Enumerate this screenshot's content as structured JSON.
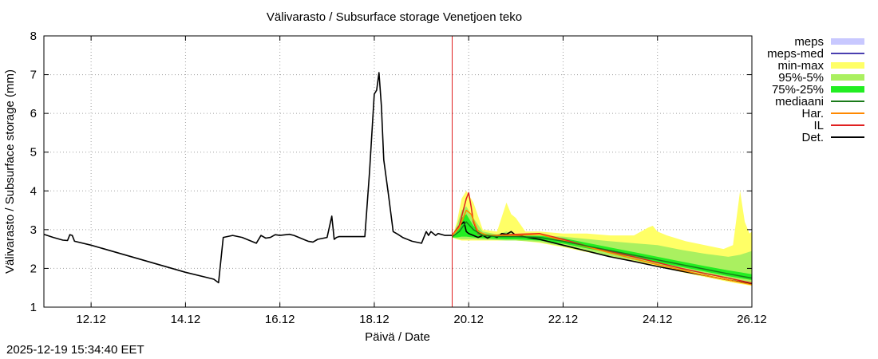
{
  "footer": {
    "timestamp": "2025-12-19 15:34:40 EET"
  },
  "chart_data": {
    "type": "line",
    "title": "Välivarasto / Subsurface storage  Venetjoen teko",
    "xlabel": "Päivä / Date",
    "ylabel": "Välivarasto / Subsurface storage (mm)",
    "x_unit": "days since 11.12 00:00",
    "xlim": [
      0,
      15.0
    ],
    "ylim": [
      1,
      8
    ],
    "yticks": [
      1,
      2,
      3,
      4,
      5,
      6,
      7,
      8
    ],
    "xticks": [
      {
        "x": 1,
        "label": "12.12"
      },
      {
        "x": 3,
        "label": "14.12"
      },
      {
        "x": 5,
        "label": "16.12"
      },
      {
        "x": 7,
        "label": "18.12"
      },
      {
        "x": 9,
        "label": "20.12"
      },
      {
        "x": 11,
        "label": "22.12"
      },
      {
        "x": 13,
        "label": "24.12"
      },
      {
        "x": 15,
        "label": "26.12"
      }
    ],
    "grid": true,
    "forecast_start_x": 8.65,
    "legend_position": "outside-right",
    "legend": [
      {
        "label": "meps",
        "color": "#c8c8ff",
        "kind": "band"
      },
      {
        "label": "meps-med",
        "color": "#4a3fb0",
        "kind": "line"
      },
      {
        "label": "min-max",
        "color": "#ffff66",
        "kind": "band"
      },
      {
        "label": "95%-5%",
        "color": "#aaf060",
        "kind": "band"
      },
      {
        "label": "75%-25%",
        "color": "#22ee22",
        "kind": "band"
      },
      {
        "label": "mediaani",
        "color": "#1a7a1a",
        "kind": "line"
      },
      {
        "label": "Har.",
        "color": "#ff8800",
        "kind": "line"
      },
      {
        "label": "IL",
        "color": "#e02020",
        "kind": "line"
      },
      {
        "label": "Det.",
        "color": "#000000",
        "kind": "line"
      }
    ],
    "series": [
      {
        "name": "min-max",
        "kind": "band",
        "color": "#ffff66",
        "x": [
          8.65,
          8.75,
          8.85,
          8.95,
          9.1,
          9.3,
          9.6,
          9.8,
          9.9,
          10.0,
          10.2,
          10.5,
          11.0,
          11.5,
          12.0,
          12.5,
          12.8,
          12.9,
          13.0,
          13.2,
          13.6,
          14.0,
          14.4,
          14.6,
          14.75,
          14.85,
          14.95,
          15.0
        ],
        "upper": [
          2.8,
          3.2,
          3.8,
          4.0,
          3.7,
          3.0,
          2.95,
          3.7,
          3.4,
          3.3,
          2.95,
          2.95,
          2.9,
          2.9,
          2.85,
          2.85,
          3.05,
          3.1,
          2.95,
          2.85,
          2.7,
          2.6,
          2.5,
          2.6,
          4.0,
          3.2,
          2.9,
          2.95
        ],
        "lower": [
          2.8,
          2.75,
          2.72,
          2.72,
          2.72,
          2.72,
          2.72,
          2.72,
          2.72,
          2.72,
          2.7,
          2.66,
          2.55,
          2.42,
          2.3,
          2.18,
          2.1,
          2.08,
          2.05,
          1.99,
          1.88,
          1.78,
          1.68,
          1.63,
          1.6,
          1.58,
          1.56,
          1.55
        ]
      },
      {
        "name": "95%-5%",
        "kind": "band",
        "color": "#aaf060",
        "x": [
          8.65,
          8.75,
          8.85,
          8.95,
          9.1,
          9.3,
          9.6,
          9.8,
          10.0,
          10.5,
          11.0,
          11.5,
          12.0,
          12.5,
          13.0,
          13.5,
          14.0,
          14.5,
          14.75,
          15.0
        ],
        "upper": [
          2.8,
          3.1,
          3.5,
          3.6,
          3.3,
          2.95,
          2.88,
          2.95,
          2.85,
          2.85,
          2.82,
          2.76,
          2.7,
          2.65,
          2.6,
          2.48,
          2.38,
          2.3,
          2.35,
          2.45
        ],
        "lower": [
          2.8,
          2.77,
          2.75,
          2.75,
          2.75,
          2.74,
          2.73,
          2.72,
          2.72,
          2.68,
          2.57,
          2.44,
          2.32,
          2.21,
          2.09,
          1.97,
          1.85,
          1.74,
          1.69,
          1.63
        ]
      },
      {
        "name": "75%-25%",
        "kind": "band",
        "color": "#22ee22",
        "x": [
          8.65,
          8.75,
          8.85,
          8.95,
          9.1,
          9.3,
          9.6,
          9.8,
          10.0,
          10.5,
          11.0,
          11.5,
          12.0,
          12.5,
          13.0,
          13.5,
          14.0,
          14.5,
          14.75,
          15.0
        ],
        "upper": [
          2.8,
          2.95,
          3.3,
          3.4,
          3.1,
          2.9,
          2.86,
          2.88,
          2.84,
          2.84,
          2.78,
          2.66,
          2.54,
          2.42,
          2.3,
          2.18,
          2.06,
          1.95,
          1.9,
          1.85
        ],
        "lower": [
          2.8,
          2.8,
          2.82,
          2.82,
          2.8,
          2.78,
          2.76,
          2.75,
          2.75,
          2.72,
          2.64,
          2.52,
          2.4,
          2.28,
          2.16,
          2.04,
          1.92,
          1.8,
          1.75,
          1.7
        ]
      },
      {
        "name": "Det.",
        "kind": "line",
        "color": "#000000",
        "x": [
          0.0,
          0.2,
          0.4,
          0.5,
          0.55,
          0.6,
          0.65,
          1.0,
          2.0,
          3.0,
          3.6,
          3.7,
          3.8,
          4.0,
          4.2,
          4.5,
          4.6,
          4.7,
          4.8,
          4.9,
          5.0,
          5.2,
          5.3,
          5.5,
          5.6,
          5.7,
          5.8,
          6.0,
          6.1,
          6.15,
          6.2,
          6.25,
          6.3,
          6.5,
          6.8,
          6.9,
          7.0,
          7.05,
          7.1,
          7.15,
          7.2,
          7.3,
          7.4,
          7.5,
          7.6,
          7.8,
          8.0,
          8.1,
          8.15,
          8.2,
          8.3,
          8.35,
          8.5,
          8.65,
          8.8,
          8.9,
          8.95,
          9.0,
          9.1,
          9.2,
          9.3,
          9.4,
          9.5,
          9.6,
          9.7,
          9.8,
          9.9,
          10.0,
          10.5,
          11.0,
          11.5,
          12.0,
          12.5,
          13.0,
          13.5,
          14.0,
          14.5,
          15.0
        ],
        "y": [
          2.88,
          2.8,
          2.73,
          2.72,
          2.87,
          2.85,
          2.7,
          2.6,
          2.25,
          1.9,
          1.72,
          1.63,
          2.8,
          2.85,
          2.8,
          2.65,
          2.85,
          2.78,
          2.8,
          2.87,
          2.85,
          2.88,
          2.85,
          2.75,
          2.7,
          2.68,
          2.75,
          2.8,
          3.35,
          2.75,
          2.8,
          2.82,
          2.82,
          2.82,
          2.82,
          4.5,
          6.5,
          6.6,
          7.05,
          6.2,
          4.8,
          3.9,
          2.95,
          2.88,
          2.8,
          2.7,
          2.65,
          2.95,
          2.85,
          2.95,
          2.85,
          2.9,
          2.85,
          2.85,
          3.1,
          3.2,
          2.95,
          2.9,
          2.85,
          2.8,
          2.85,
          2.78,
          2.85,
          2.8,
          2.9,
          2.88,
          2.95,
          2.85,
          2.75,
          2.6,
          2.45,
          2.3,
          2.18,
          2.05,
          1.93,
          1.82,
          1.7,
          1.6
        ]
      },
      {
        "name": "IL",
        "kind": "line",
        "color": "#e02020",
        "x": [
          8.65,
          8.8,
          8.95,
          9.0,
          9.05,
          9.1,
          9.2,
          9.3,
          9.5,
          10.0,
          10.5,
          11.0,
          11.5,
          12.0,
          12.5,
          13.0,
          13.5,
          14.0,
          14.5,
          15.0
        ],
        "y": [
          2.85,
          3.1,
          3.8,
          3.95,
          3.6,
          3.2,
          2.9,
          2.85,
          2.85,
          2.88,
          2.9,
          2.75,
          2.58,
          2.44,
          2.3,
          2.15,
          2.0,
          1.87,
          1.75,
          1.62
        ]
      },
      {
        "name": "Har.",
        "kind": "line",
        "color": "#ff8800",
        "x": [
          8.65,
          8.8,
          8.95,
          9.05,
          9.2,
          9.4,
          10.0,
          10.5,
          11.0,
          12.0,
          13.0,
          14.0,
          15.0
        ],
        "y": [
          2.85,
          3.05,
          3.5,
          3.4,
          2.95,
          2.85,
          2.85,
          2.88,
          2.72,
          2.4,
          2.1,
          1.82,
          1.58
        ]
      },
      {
        "name": "mediaani",
        "kind": "line",
        "color": "#1a7a1a",
        "x": [
          8.65,
          8.8,
          8.95,
          9.1,
          9.3,
          9.6,
          10.0,
          10.5,
          11.0,
          11.5,
          12.0,
          12.5,
          13.0,
          13.5,
          14.0,
          14.5,
          15.0
        ],
        "y": [
          2.82,
          2.95,
          3.2,
          3.0,
          2.85,
          2.82,
          2.82,
          2.8,
          2.7,
          2.58,
          2.46,
          2.34,
          2.22,
          2.1,
          1.98,
          1.86,
          1.75
        ]
      }
    ]
  }
}
